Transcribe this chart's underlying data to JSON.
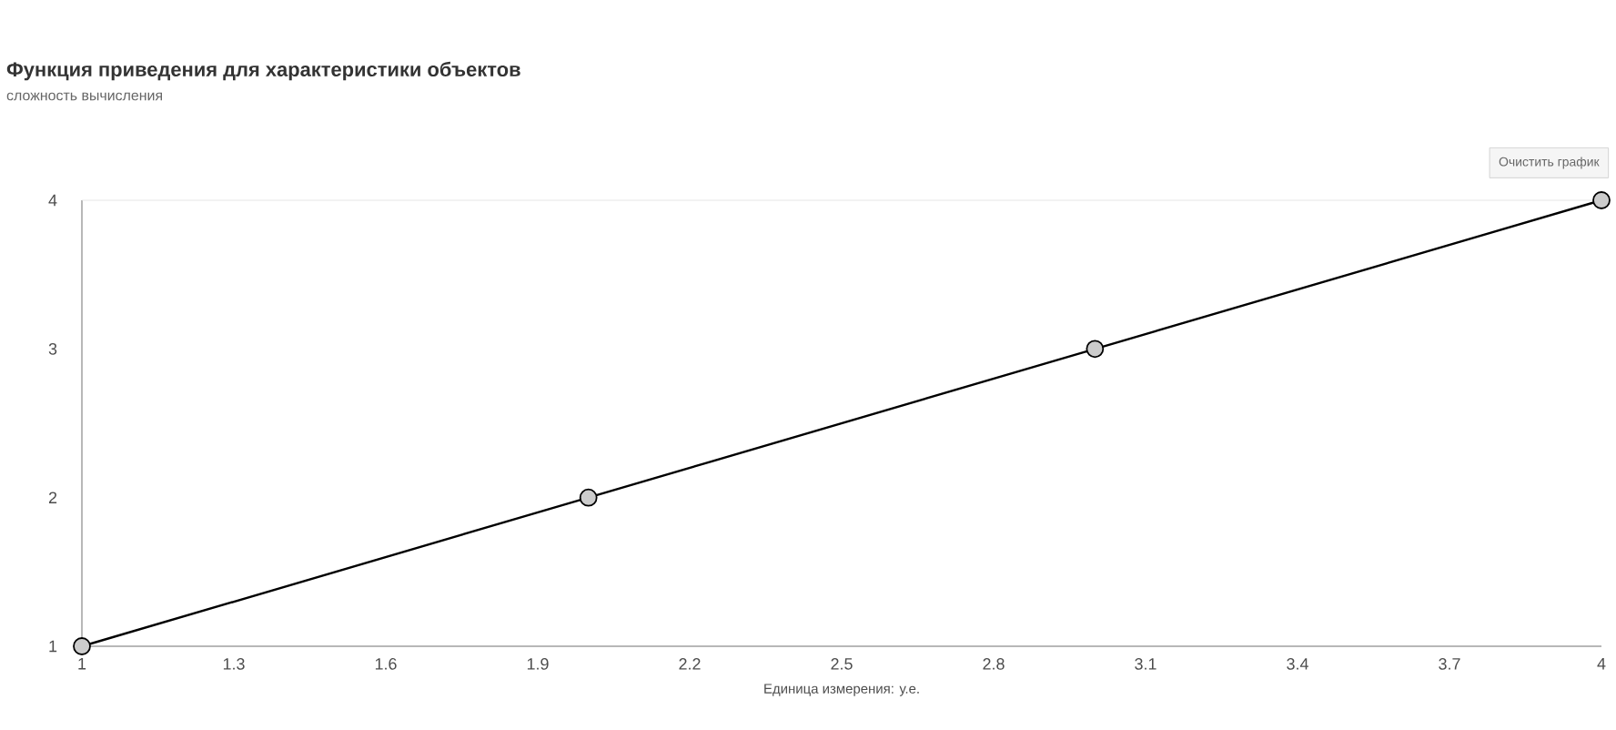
{
  "chart_data": {
    "type": "line",
    "title": "Функция приведения для характеристики объектов",
    "subtitle": "сложность вычисления",
    "xlabel": "Единица измерения: у.е.",
    "annotations": [
      "Очистить график"
    ],
    "x": [
      1,
      2,
      3,
      4
    ],
    "series": [
      {
        "color": "#000000",
        "values": [
          1,
          2,
          3,
          4
        ]
      }
    ],
    "xlim": [
      1,
      4
    ],
    "ylim": [
      1,
      4
    ],
    "xticks": [
      1,
      1.3,
      1.6,
      1.9,
      2.2,
      2.5,
      2.8,
      3.1,
      3.4,
      3.7,
      4
    ],
    "yticks": [
      1,
      2,
      3,
      4
    ],
    "marker": "circle",
    "line_style": "solid"
  }
}
